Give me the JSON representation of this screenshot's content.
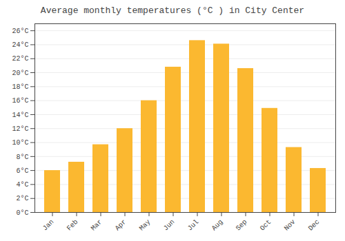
{
  "chart_data": {
    "type": "bar",
    "title": "Average monthly temperatures (°C ) in City Center",
    "categories": [
      "Jan",
      "Feb",
      "Mar",
      "Apr",
      "May",
      "Jun",
      "Jul",
      "Aug",
      "Sep",
      "Oct",
      "Nov",
      "Dec"
    ],
    "values": [
      6.0,
      7.2,
      9.7,
      12.0,
      16.0,
      20.8,
      24.6,
      24.1,
      20.6,
      14.9,
      9.3,
      6.3
    ],
    "color": "#FBB830",
    "ylim": [
      0,
      27
    ],
    "yticks": [
      {
        "value": 0,
        "label": "0°C"
      },
      {
        "value": 2,
        "label": "2°C"
      },
      {
        "value": 4,
        "label": "4°C"
      },
      {
        "value": 6,
        "label": "6°C"
      },
      {
        "value": 8,
        "label": "8°C"
      },
      {
        "value": 10,
        "label": "10°C"
      },
      {
        "value": 12,
        "label": "12°C"
      },
      {
        "value": 14,
        "label": "14°C"
      },
      {
        "value": 16,
        "label": "16°C"
      },
      {
        "value": 18,
        "label": "18°C"
      },
      {
        "value": 20,
        "label": "20°C"
      },
      {
        "value": 22,
        "label": "22°C"
      },
      {
        "value": 24,
        "label": "24°C"
      },
      {
        "value": 26,
        "label": "26°C"
      }
    ],
    "grid": true
  }
}
